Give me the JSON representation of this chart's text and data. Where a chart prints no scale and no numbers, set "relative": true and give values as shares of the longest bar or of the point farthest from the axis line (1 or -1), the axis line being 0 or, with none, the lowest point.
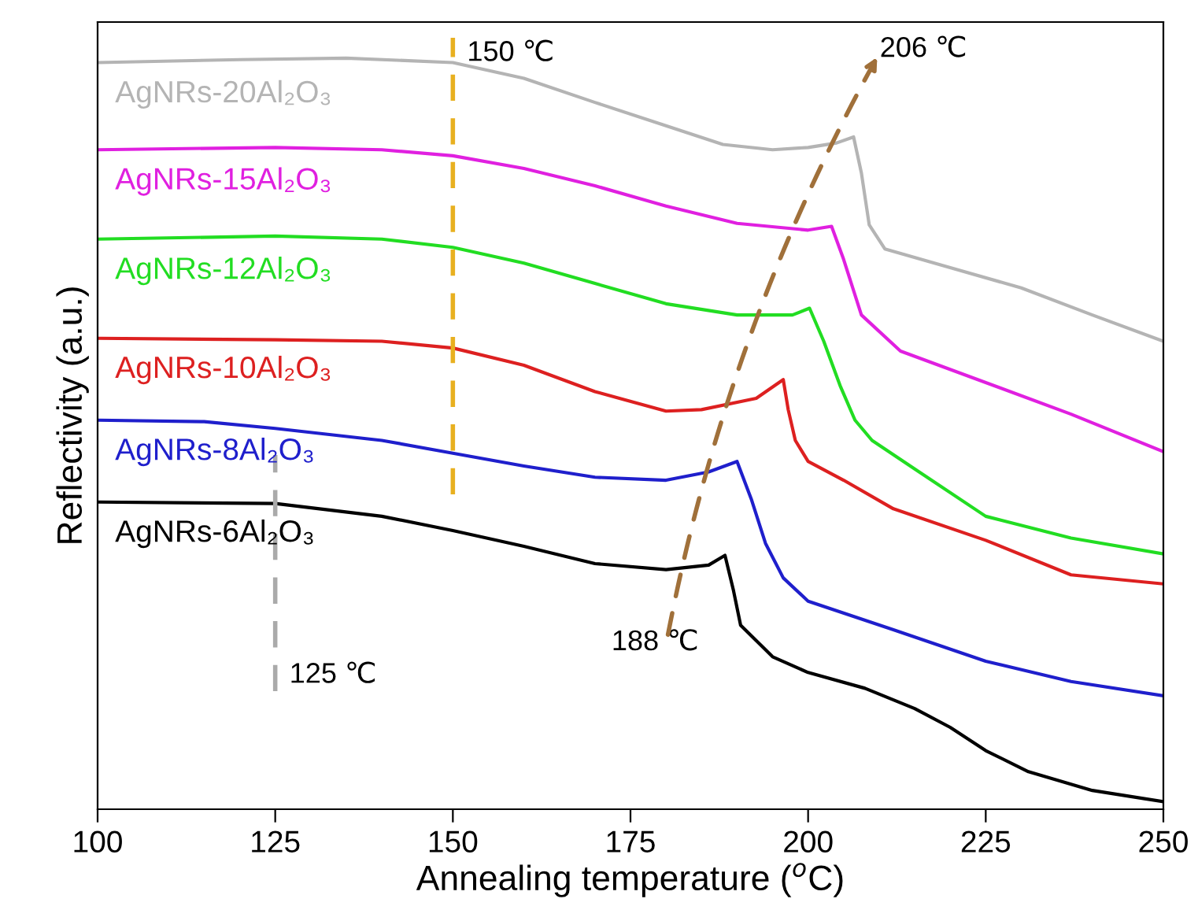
{
  "chart_data": {
    "type": "line",
    "relative": true,
    "xlabel": "Annealing temperature ($^{o}$C)",
    "ylabel": "Reflectivity (a.u.)",
    "xlim": [
      100,
      250
    ],
    "xticks": [
      100,
      125,
      150,
      175,
      200,
      225,
      250
    ],
    "grid": false,
    "legend": false,
    "marker": "none",
    "line_style": "solid",
    "series": [
      {
        "name": "AgNRs-20Al₂O₃",
        "color": "#b4b4b4",
        "x": [
          100,
          120,
          135,
          150,
          160,
          170,
          180,
          188,
          195,
          200,
          204,
          206.4,
          207.5,
          208.6,
          210.8,
          220,
          230,
          240,
          250
        ],
        "values": [
          0.994,
          0.998,
          1.0,
          0.994,
          0.973,
          0.941,
          0.91,
          0.885,
          0.878,
          0.881,
          0.887,
          0.895,
          0.847,
          0.778,
          0.746,
          0.721,
          0.694,
          0.658,
          0.623
        ]
      },
      {
        "name": "AgNRs-15Al₂O₃",
        "color": "#e020e0",
        "x": [
          100,
          125,
          140,
          150,
          160,
          170,
          180,
          190,
          200,
          203.3,
          205,
          207.5,
          213,
          225,
          237,
          250
        ],
        "values": [
          0.878,
          0.881,
          0.878,
          0.87,
          0.853,
          0.83,
          0.803,
          0.78,
          0.771,
          0.776,
          0.732,
          0.658,
          0.61,
          0.568,
          0.526,
          0.476
        ]
      },
      {
        "name": "AgNRs-12Al₂O₃",
        "color": "#22dd22",
        "x": [
          100,
          125,
          140,
          150,
          160,
          170,
          180,
          190,
          197.8,
          200.2,
          202.2,
          204.5,
          206.6,
          209,
          215,
          225,
          237,
          250
        ],
        "values": [
          0.759,
          0.763,
          0.759,
          0.748,
          0.727,
          0.7,
          0.673,
          0.658,
          0.658,
          0.667,
          0.623,
          0.564,
          0.518,
          0.491,
          0.453,
          0.39,
          0.361,
          0.34
        ]
      },
      {
        "name": "AgNRs-10Al₂O₃",
        "color": "#dd2020",
        "x": [
          100,
          125,
          140,
          150,
          160,
          170,
          180,
          185,
          192.7,
          196.5,
          197.2,
          198.2,
          200,
          205,
          212,
          225,
          237,
          250
        ],
        "values": [
          0.627,
          0.625,
          0.623,
          0.614,
          0.591,
          0.556,
          0.53,
          0.532,
          0.547,
          0.572,
          0.532,
          0.491,
          0.463,
          0.438,
          0.4,
          0.358,
          0.312,
          0.3
        ]
      },
      {
        "name": "AgNRs-8Al₂O₃",
        "color": "#1f1fcc",
        "x": [
          100,
          115,
          125,
          140,
          150,
          160,
          170,
          180,
          186,
          190,
          192,
          194,
          196.5,
          200,
          212,
          225,
          237,
          250
        ],
        "values": [
          0.518,
          0.516,
          0.507,
          0.491,
          0.474,
          0.457,
          0.442,
          0.438,
          0.449,
          0.463,
          0.413,
          0.354,
          0.308,
          0.277,
          0.239,
          0.197,
          0.17,
          0.151
        ]
      },
      {
        "name": "AgNRs-6Al₂O₃",
        "color": "#000000",
        "x": [
          100,
          125,
          140,
          150,
          160,
          170,
          180,
          186,
          188.3,
          189.5,
          190.5,
          195,
          200,
          208,
          215,
          220,
          225,
          231,
          240,
          250
        ],
        "values": [
          0.409,
          0.407,
          0.39,
          0.371,
          0.35,
          0.327,
          0.319,
          0.325,
          0.338,
          0.291,
          0.245,
          0.203,
          0.182,
          0.161,
          0.134,
          0.109,
          0.078,
          0.05,
          0.025,
          0.01
        ]
      }
    ],
    "ref_lines": [
      {
        "axis": "x",
        "value": 150,
        "label": "150 ℃",
        "color": "#e8b020",
        "line_style": "dashed"
      },
      {
        "axis": "x",
        "value": 125,
        "label": "125 ℃",
        "color": "#aaaaaa",
        "line_style": "dashed"
      }
    ],
    "annotations": [
      {
        "text": "188 ℃",
        "x": 188.3,
        "y": 0.338
      },
      {
        "text": "206 ℃",
        "x": 206.4,
        "y": 0.895
      }
    ]
  }
}
